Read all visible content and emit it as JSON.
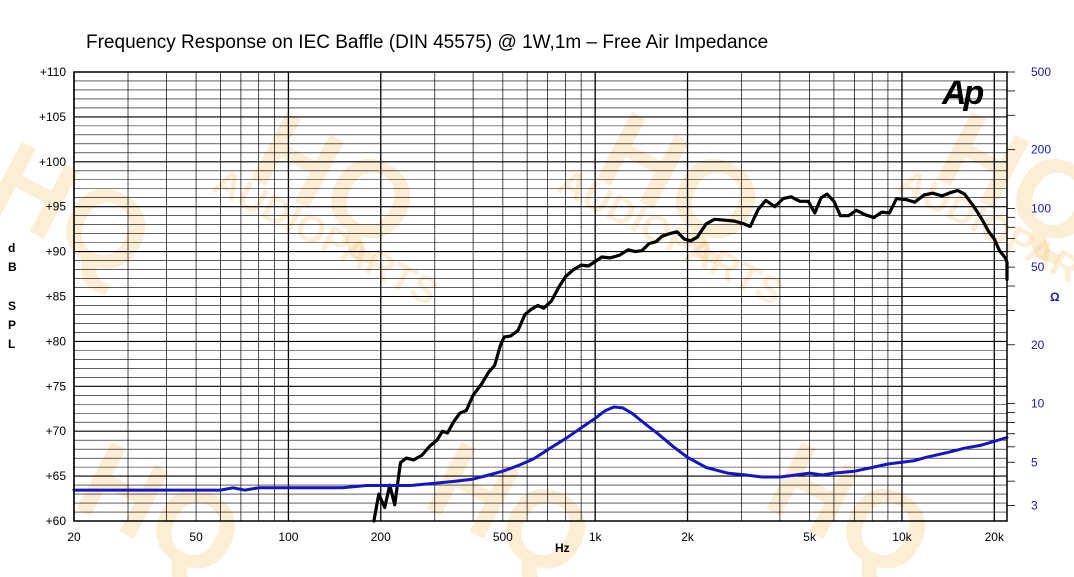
{
  "chart_data": {
    "type": "line",
    "title": "Frequency Response on IEC Baffle (DIN 45575) @ 1W,1m – Free Air Impedance",
    "xlabel": "Hz",
    "ylabel_left": [
      "d",
      "B",
      "",
      "S",
      "P",
      "L"
    ],
    "ylabel_right": "Ω",
    "x_scale": "log",
    "xlim": [
      20,
      22000
    ],
    "ylim_left": [
      60,
      110
    ],
    "ylim_right": [
      2.5,
      500
    ],
    "y_right_scale": "log",
    "x_ticks": [
      {
        "value": 20,
        "label": "20"
      },
      {
        "value": 50,
        "label": "50"
      },
      {
        "value": 100,
        "label": "100"
      },
      {
        "value": 200,
        "label": "200"
      },
      {
        "value": 500,
        "label": "500"
      },
      {
        "value": 1000,
        "label": "1k"
      },
      {
        "value": 2000,
        "label": "2k"
      },
      {
        "value": 5000,
        "label": "5k"
      },
      {
        "value": 10000,
        "label": "10k"
      },
      {
        "value": 20000,
        "label": "20k"
      }
    ],
    "y_left_ticks": [
      {
        "value": 110,
        "label": "+110"
      },
      {
        "value": 105,
        "label": "+105"
      },
      {
        "value": 100,
        "label": "+100"
      },
      {
        "value": 95,
        "label": "+95"
      },
      {
        "value": 90,
        "label": "+90"
      },
      {
        "value": 85,
        "label": "+85"
      },
      {
        "value": 80,
        "label": "+80"
      },
      {
        "value": 75,
        "label": "+75"
      },
      {
        "value": 70,
        "label": "+70"
      },
      {
        "value": 65,
        "label": "+65"
      },
      {
        "value": 60,
        "label": "+60"
      }
    ],
    "y_right_ticks": [
      {
        "value": 500,
        "label": "500"
      },
      {
        "value": 200,
        "label": "200"
      },
      {
        "value": 100,
        "label": "100"
      },
      {
        "value": 50,
        "label": "50"
      },
      {
        "value": 20,
        "label": "20"
      },
      {
        "value": 10,
        "label": "10"
      },
      {
        "value": 5,
        "label": "5"
      },
      {
        "value": 3,
        "label": "3"
      }
    ],
    "grid": true,
    "logo": "Ap",
    "watermark": [
      "HQ",
      "AUDIOPARTS"
    ],
    "series": [
      {
        "axis": "left",
        "color": "#000000",
        "points": [
          [
            190,
            59
          ],
          [
            197,
            63
          ],
          [
            206,
            61.5
          ],
          [
            214,
            64
          ],
          [
            222,
            61.8
          ],
          [
            232,
            66.5
          ],
          [
            242,
            67
          ],
          [
            256,
            66.8
          ],
          [
            272,
            67.3
          ],
          [
            290,
            68.4
          ],
          [
            305,
            69
          ],
          [
            318,
            70
          ],
          [
            330,
            69.8
          ],
          [
            345,
            71
          ],
          [
            362,
            72
          ],
          [
            380,
            72.3
          ],
          [
            400,
            74
          ],
          [
            425,
            75.2
          ],
          [
            450,
            76.6
          ],
          [
            470,
            77.3
          ],
          [
            490,
            79.5
          ],
          [
            505,
            80.5
          ],
          [
            530,
            80.6
          ],
          [
            560,
            81.2
          ],
          [
            590,
            83
          ],
          [
            620,
            83.6
          ],
          [
            650,
            84
          ],
          [
            680,
            83.7
          ],
          [
            720,
            84.5
          ],
          [
            760,
            86
          ],
          [
            800,
            87.2
          ],
          [
            850,
            88
          ],
          [
            900,
            88.5
          ],
          [
            950,
            88.4
          ],
          [
            1000,
            88.9
          ],
          [
            1050,
            89.4
          ],
          [
            1120,
            89.3
          ],
          [
            1200,
            89.6
          ],
          [
            1280,
            90.2
          ],
          [
            1350,
            90
          ],
          [
            1420,
            90.1
          ],
          [
            1500,
            90.9
          ],
          [
            1580,
            91.1
          ],
          [
            1650,
            91.7
          ],
          [
            1750,
            92
          ],
          [
            1850,
            92.2
          ],
          [
            1950,
            91.4
          ],
          [
            2050,
            91.2
          ],
          [
            2150,
            91.6
          ],
          [
            2300,
            93.1
          ],
          [
            2450,
            93.6
          ],
          [
            2650,
            93.5
          ],
          [
            2850,
            93.4
          ],
          [
            3050,
            93.1
          ],
          [
            3200,
            92.8
          ],
          [
            3400,
            94.7
          ],
          [
            3600,
            95.7
          ],
          [
            3850,
            95
          ],
          [
            4100,
            95.9
          ],
          [
            4350,
            96.1
          ],
          [
            4650,
            95.6
          ],
          [
            4950,
            95.6
          ],
          [
            5200,
            94.3
          ],
          [
            5450,
            96
          ],
          [
            5700,
            96.4
          ],
          [
            6000,
            95.6
          ],
          [
            6300,
            94
          ],
          [
            6700,
            94
          ],
          [
            7100,
            94.6
          ],
          [
            7600,
            94.1
          ],
          [
            8100,
            93.8
          ],
          [
            8600,
            94.4
          ],
          [
            9100,
            94.3
          ],
          [
            9600,
            95.9
          ],
          [
            10300,
            95.8
          ],
          [
            11000,
            95.5
          ],
          [
            11800,
            96.3
          ],
          [
            12600,
            96.5
          ],
          [
            13500,
            96.2
          ],
          [
            14500,
            96.6
          ],
          [
            15200,
            96.8
          ],
          [
            16000,
            96.4
          ],
          [
            17000,
            95.2
          ],
          [
            18000,
            93.9
          ],
          [
            19200,
            92.2
          ],
          [
            20000,
            91.4
          ],
          [
            20800,
            90.1
          ],
          [
            21400,
            89.6
          ],
          [
            21800,
            89.2
          ],
          [
            22000,
            88.8
          ],
          [
            22300,
            86.9
          ]
        ]
      },
      {
        "axis": "right",
        "color": "#1515c4",
        "points": [
          [
            20,
            3.6
          ],
          [
            40,
            3.6
          ],
          [
            60,
            3.6
          ],
          [
            66,
            3.7
          ],
          [
            72,
            3.6
          ],
          [
            80,
            3.7
          ],
          [
            100,
            3.7
          ],
          [
            150,
            3.7
          ],
          [
            180,
            3.8
          ],
          [
            250,
            3.8
          ],
          [
            300,
            3.9
          ],
          [
            350,
            4.0
          ],
          [
            400,
            4.1
          ],
          [
            450,
            4.3
          ],
          [
            500,
            4.5
          ],
          [
            560,
            4.8
          ],
          [
            630,
            5.2
          ],
          [
            700,
            5.8
          ],
          [
            800,
            6.6
          ],
          [
            900,
            7.5
          ],
          [
            1000,
            8.4
          ],
          [
            1080,
            9.2
          ],
          [
            1150,
            9.6
          ],
          [
            1230,
            9.5
          ],
          [
            1320,
            8.9
          ],
          [
            1450,
            7.9
          ],
          [
            1600,
            7.0
          ],
          [
            1800,
            6.0
          ],
          [
            2000,
            5.3
          ],
          [
            2300,
            4.7
          ],
          [
            2700,
            4.4
          ],
          [
            3100,
            4.3
          ],
          [
            3500,
            4.2
          ],
          [
            4000,
            4.2
          ],
          [
            4500,
            4.3
          ],
          [
            5000,
            4.4
          ],
          [
            5500,
            4.3
          ],
          [
            6000,
            4.4
          ],
          [
            7000,
            4.5
          ],
          [
            8000,
            4.7
          ],
          [
            9000,
            4.9
          ],
          [
            10000,
            5.0
          ],
          [
            11000,
            5.1
          ],
          [
            12000,
            5.3
          ],
          [
            14000,
            5.6
          ],
          [
            16000,
            5.9
          ],
          [
            18000,
            6.1
          ],
          [
            20000,
            6.4
          ],
          [
            22000,
            6.7
          ]
        ]
      }
    ]
  }
}
